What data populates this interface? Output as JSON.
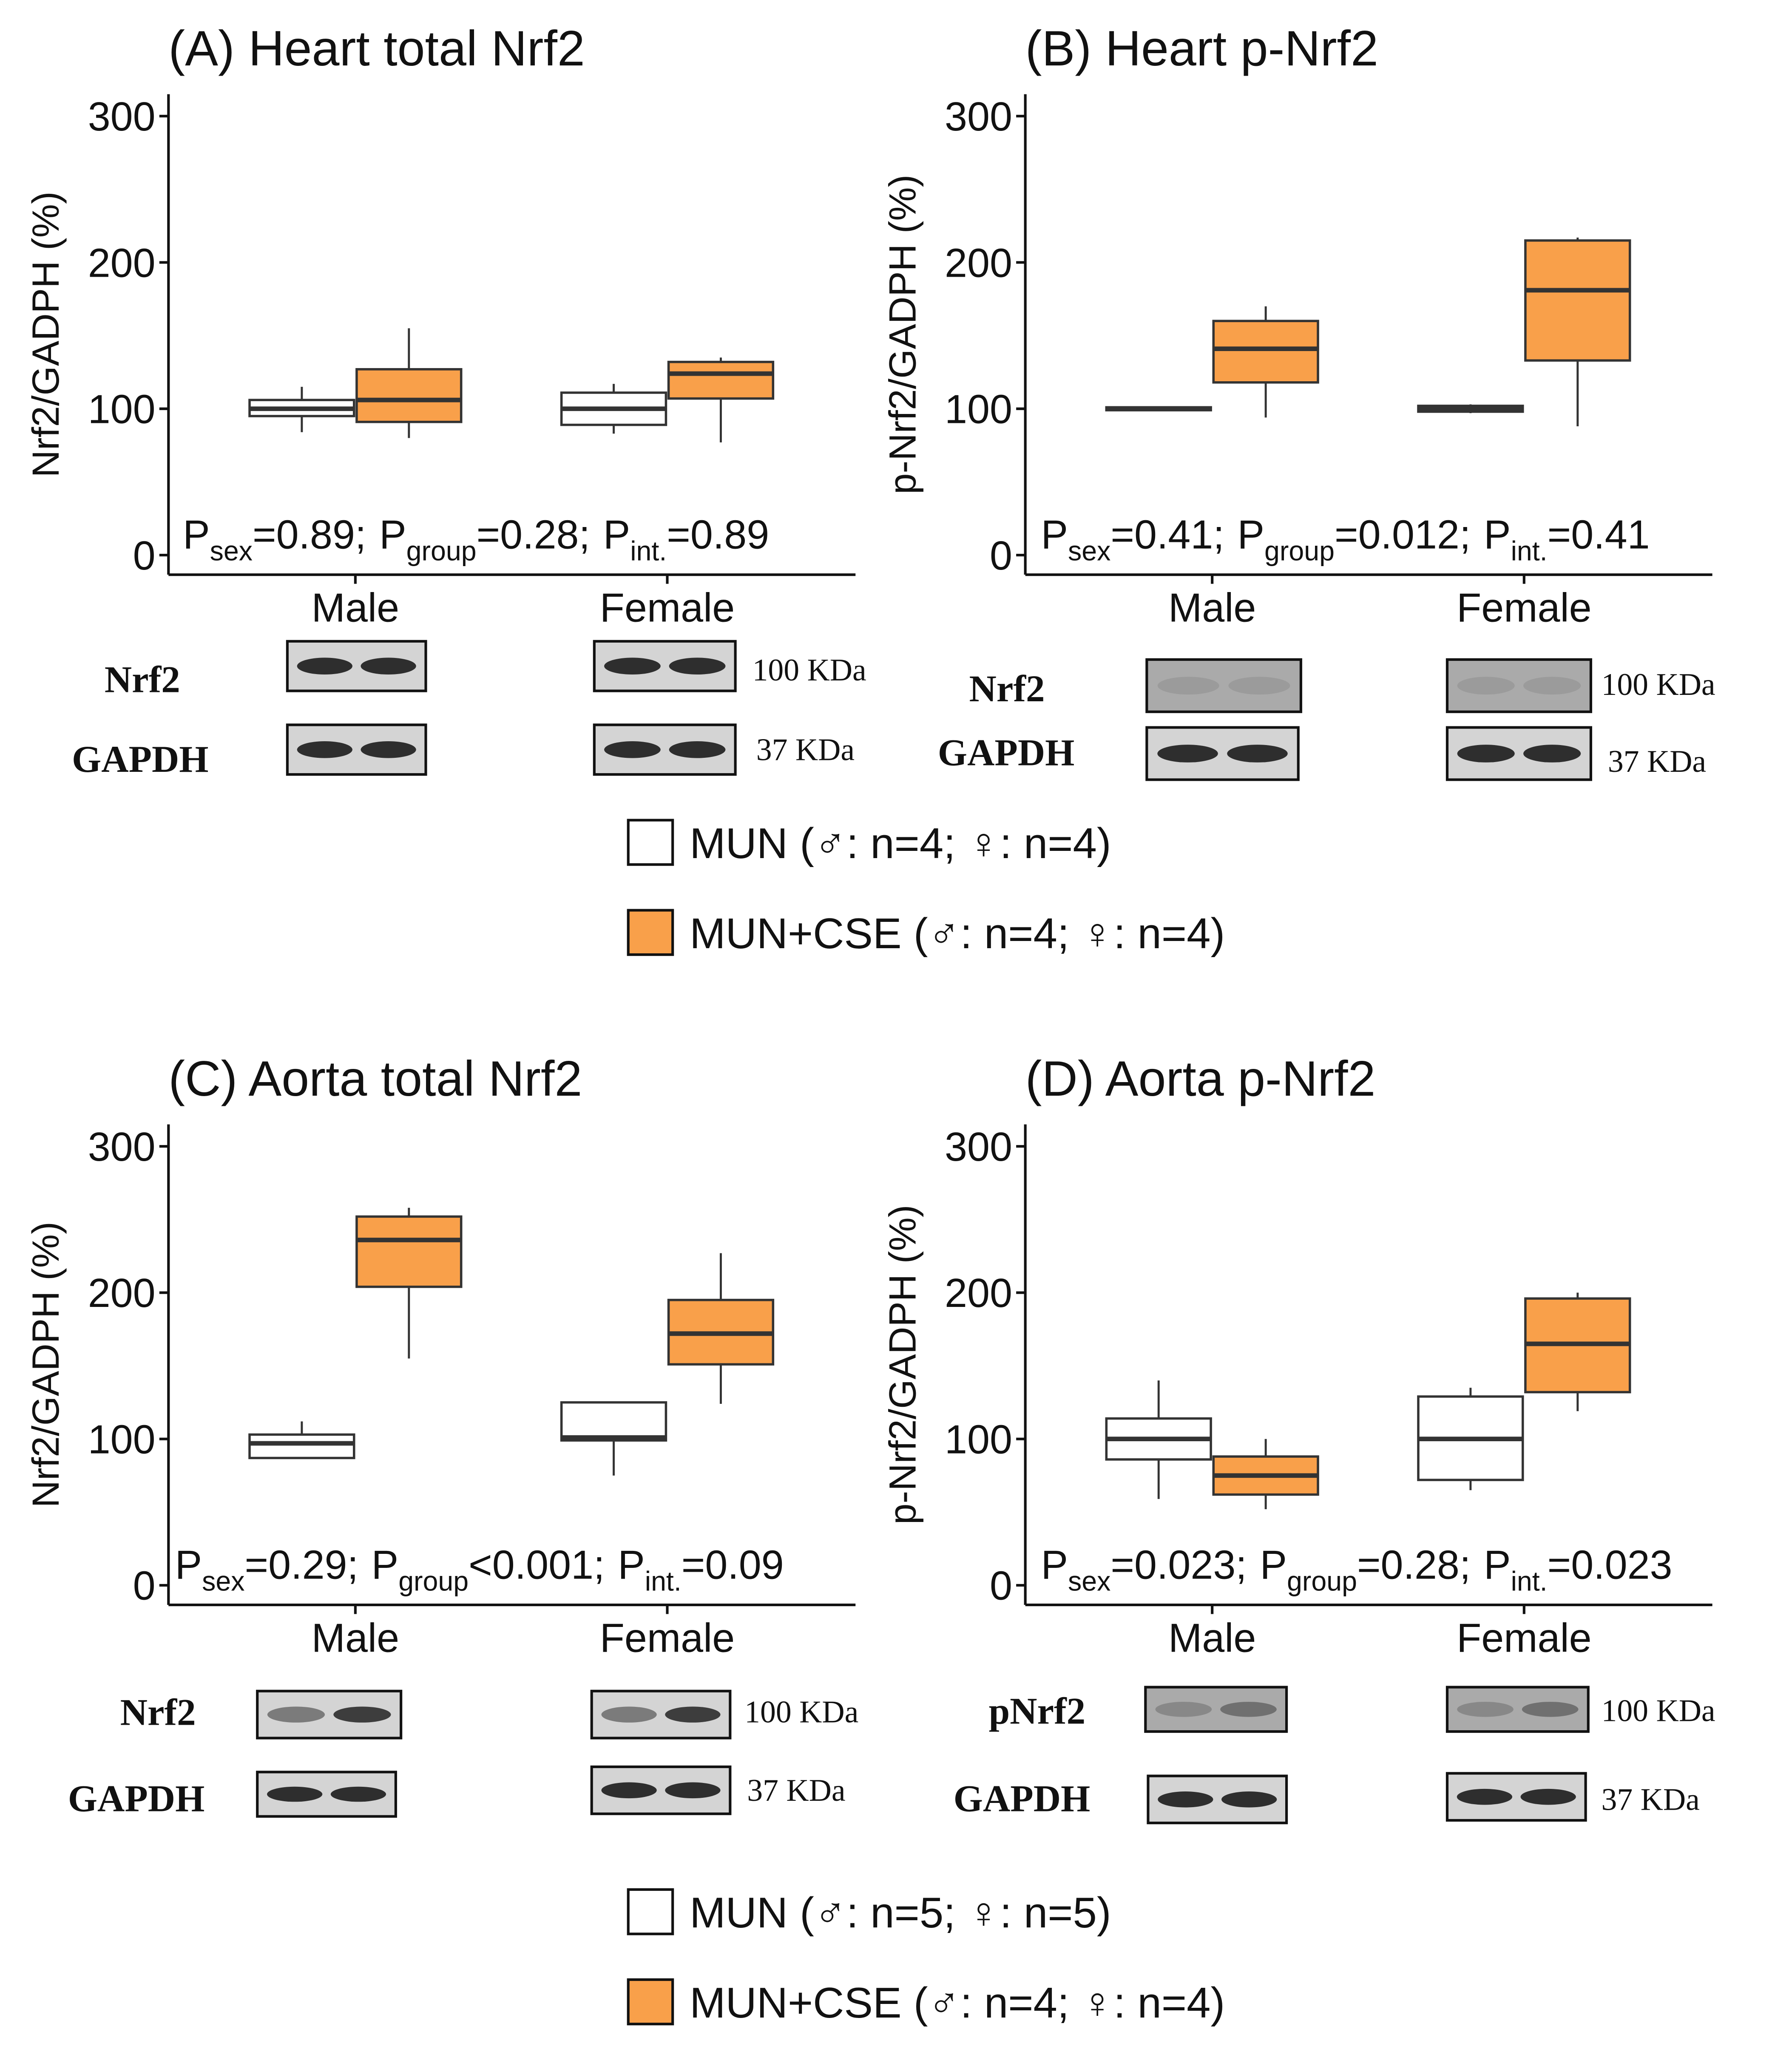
{
  "chart_data": [
    {
      "type": "box",
      "title": "(A) Heart total Nrf2",
      "ylabel": "Nrf2/GADPH (%)",
      "categories": [
        "Male",
        "Female"
      ],
      "ylim": [
        -13.4,
        315
      ],
      "yticks": [
        0,
        100,
        200,
        300
      ],
      "series": [
        {
          "color": "#ffffff",
          "values": [
            {
              "min": 84,
              "q1": 95,
              "median": 100,
              "q3": 106,
              "max": 115
            },
            {
              "min": 83,
              "q1": 89,
              "median": 100,
              "q3": 111,
              "max": 117
            }
          ]
        },
        {
          "color": "#f9a04a",
          "values": [
            {
              "min": 80,
              "q1": 91,
              "median": 106,
              "q3": 127,
              "max": 155
            },
            {
              "min": 77,
              "q1": 107,
              "median": 124,
              "q3": 132,
              "max": 135
            }
          ]
        }
      ],
      "stats": [
        {
          "p": "P",
          "sub": "sex",
          "val": "=0.89;"
        },
        {
          "p": "P",
          "sub": "group",
          "val": "=0.28;"
        },
        {
          "p": "P",
          "sub": "int.",
          "val": "=0.89"
        }
      ],
      "blots": [
        {
          "label": "Nrf2",
          "size": "100 KDa"
        },
        {
          "label": "GAPDH",
          "size": "37 KDa"
        }
      ]
    },
    {
      "type": "box",
      "title": "(B) Heart p-Nrf2",
      "ylabel": "p-Nrf2/GADPH (%)",
      "categories": [
        "Male",
        "Female"
      ],
      "ylim": [
        -13.4,
        315
      ],
      "yticks": [
        0,
        100,
        200,
        300
      ],
      "series": [
        {
          "color": "#ffffff",
          "values": [
            {
              "min": 99,
              "q1": 99,
              "median": 100,
              "q3": 101,
              "max": 101
            },
            {
              "min": 97,
              "q1": 98,
              "median": 100,
              "q3": 102,
              "max": 103
            }
          ]
        },
        {
          "color": "#f9a04a",
          "values": [
            {
              "min": 94,
              "q1": 118,
              "median": 141,
              "q3": 160,
              "max": 170
            },
            {
              "min": 88,
              "q1": 133,
              "median": 181,
              "q3": 215,
              "max": 217
            }
          ]
        }
      ],
      "stats": [
        {
          "p": "P",
          "sub": "sex",
          "val": "=0.41;"
        },
        {
          "p": "P",
          "sub": "group",
          "val": "=0.012;"
        },
        {
          "p": "P",
          "sub": "int.",
          "val": "=0.41"
        }
      ],
      "blots": [
        {
          "label": "Nrf2",
          "size": "100 KDa"
        },
        {
          "label": "GAPDH",
          "size": "37 KDa"
        }
      ]
    },
    {
      "type": "box",
      "title": "(C) Aorta total Nrf2",
      "ylabel": "Nrf2/GADPH (%)",
      "categories": [
        "Male",
        "Female"
      ],
      "ylim": [
        -13.4,
        315
      ],
      "yticks": [
        0,
        100,
        200,
        300
      ],
      "series": [
        {
          "color": "#ffffff",
          "values": [
            {
              "min": 87,
              "q1": 87,
              "median": 97,
              "q3": 103,
              "max": 112
            },
            {
              "min": 75,
              "q1": 99,
              "median": 101,
              "q3": 125,
              "max": 125
            }
          ]
        },
        {
          "color": "#f9a04a",
          "values": [
            {
              "min": 155,
              "q1": 204,
              "median": 236,
              "q3": 252,
              "max": 258
            },
            {
              "min": 124,
              "q1": 151,
              "median": 172,
              "q3": 195,
              "max": 227
            }
          ]
        }
      ],
      "stats": [
        {
          "p": "P",
          "sub": "sex",
          "val": "=0.29;"
        },
        {
          "p": "P",
          "sub": "group",
          "val": "<0.001;"
        },
        {
          "p": "P",
          "sub": "int.",
          "val": "=0.09"
        }
      ],
      "blots": [
        {
          "label": "Nrf2",
          "size": "100 KDa"
        },
        {
          "label": "GAPDH",
          "size": "37 KDa"
        }
      ]
    },
    {
      "type": "box",
      "title": "(D) Aorta p-Nrf2",
      "ylabel": "p-Nrf2/GADPH (%)",
      "categories": [
        "Male",
        "Female"
      ],
      "ylim": [
        -13.4,
        315
      ],
      "yticks": [
        0,
        100,
        200,
        300
      ],
      "series": [
        {
          "color": "#ffffff",
          "values": [
            {
              "min": 59,
              "q1": 86,
              "median": 100,
              "q3": 114,
              "max": 140
            },
            {
              "min": 65,
              "q1": 72,
              "median": 100,
              "q3": 129,
              "max": 135
            }
          ]
        },
        {
          "color": "#f9a04a",
          "values": [
            {
              "min": 52,
              "q1": 62,
              "median": 75,
              "q3": 88,
              "max": 100
            },
            {
              "min": 119,
              "q1": 132,
              "median": 165,
              "q3": 196,
              "max": 200
            }
          ]
        }
      ],
      "stats": [
        {
          "p": "P",
          "sub": "sex",
          "val": "=0.023;"
        },
        {
          "p": "P",
          "sub": "group",
          "val": "=0.28;"
        },
        {
          "p": "P",
          "sub": "int.",
          "val": "=0.023"
        }
      ],
      "blots": [
        {
          "label": "pNrf2",
          "size": "100 KDa"
        },
        {
          "label": "GAPDH",
          "size": "37 KDa"
        }
      ]
    }
  ],
  "legends": [
    {
      "entries": [
        {
          "label": "MUN (♂: n=4; ♀: n=4)",
          "color": "#ffffff"
        },
        {
          "label": "MUN+CSE (♂: n=4; ♀: n=4)",
          "color": "#f9a04a"
        }
      ]
    },
    {
      "entries": [
        {
          "label": "MUN (♂: n=5; ♀: n=5)",
          "color": "#ffffff"
        },
        {
          "label": "MUN+CSE (♂: n=4; ♀: n=4)",
          "color": "#f9a04a"
        }
      ]
    }
  ]
}
